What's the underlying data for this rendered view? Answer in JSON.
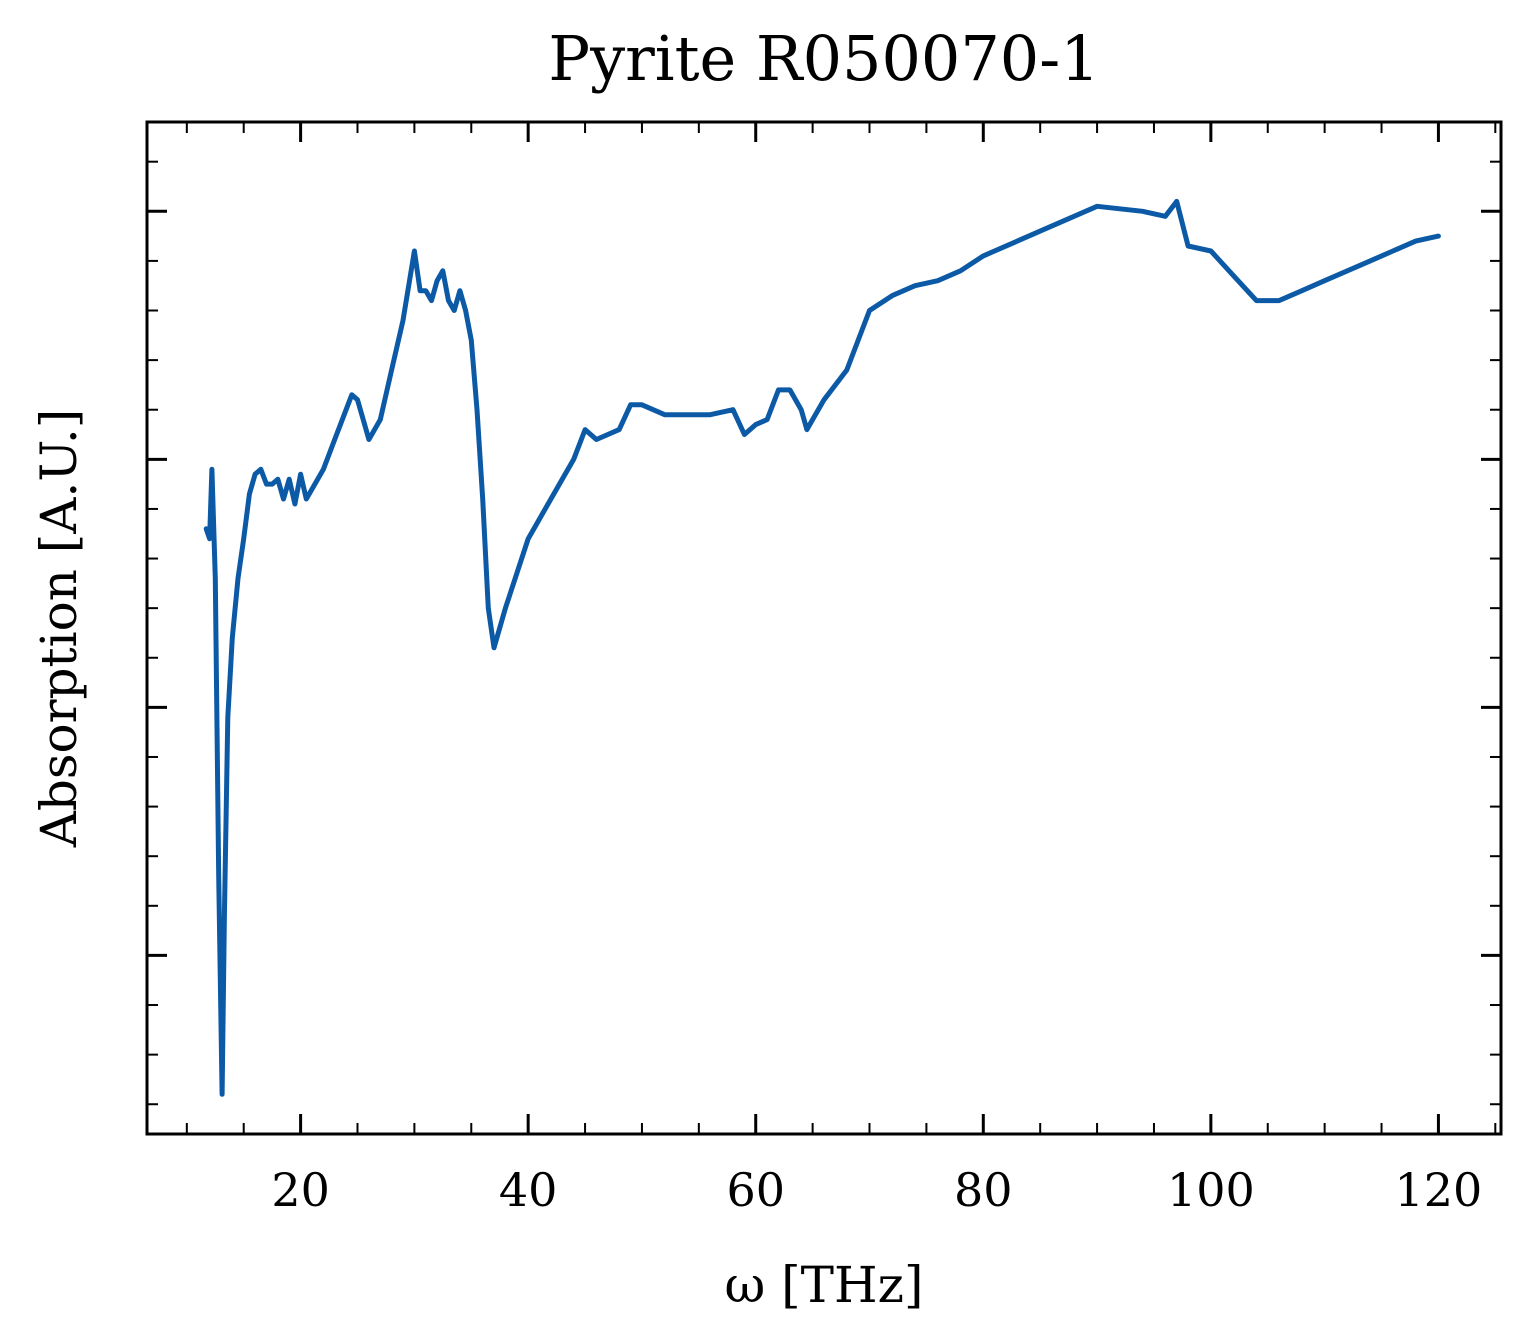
{
  "chart_data": {
    "type": "line",
    "title": "Pyrite R050070-1",
    "xlabel": "ω [THz]",
    "ylabel": "Absorption [A.U.]",
    "xlim": [
      6.5,
      125.5
    ],
    "ylim": [
      0.02,
      1.04
    ],
    "xticks": [
      20,
      40,
      60,
      80,
      100,
      120
    ],
    "xtick_labels": [
      "20",
      "40",
      "60",
      "80",
      "100",
      "120"
    ],
    "yticks": [
      0.2,
      0.45,
      0.7,
      0.95
    ],
    "ytick_labels": [
      "",
      "",
      "",
      ""
    ],
    "grid": false,
    "line_color": "#0c5aa6",
    "series": [
      {
        "name": "",
        "x": [
          11.7,
          12.0,
          12.2,
          12.5,
          12.8,
          13.1,
          13.3,
          13.6,
          14.0,
          14.5,
          15.0,
          15.5,
          16.0,
          16.5,
          17.0,
          17.5,
          18.0,
          18.5,
          19.0,
          19.5,
          20.0,
          20.5,
          21.0,
          22.0,
          23.0,
          24.0,
          24.5,
          25.0,
          25.5,
          26.0,
          27.0,
          28.0,
          29.0,
          30.0,
          30.5,
          31.0,
          31.5,
          32.0,
          32.5,
          33.0,
          33.5,
          34.0,
          34.5,
          35.0,
          35.5,
          36.0,
          36.5,
          37.0,
          38.0,
          40.0,
          42.0,
          44.0,
          45.0,
          46.0,
          48.0,
          49.0,
          50.0,
          52.0,
          54.0,
          56.0,
          58.0,
          59.0,
          60.0,
          61.0,
          62.0,
          63.0,
          64.0,
          64.5,
          65.0,
          66.0,
          68.0,
          70.0,
          72.0,
          74.0,
          76.0,
          78.0,
          80.0,
          85.0,
          90.0,
          94.0,
          96.0,
          97.0,
          98.0,
          100.0,
          102.0,
          104.0,
          106.0,
          108.0,
          110.0,
          112.0,
          114.0,
          116.0,
          118.0,
          120.0
        ],
        "y": [
          0.63,
          0.62,
          0.69,
          0.58,
          0.28,
          0.06,
          0.24,
          0.44,
          0.52,
          0.58,
          0.62,
          0.665,
          0.685,
          0.69,
          0.675,
          0.675,
          0.68,
          0.66,
          0.68,
          0.655,
          0.685,
          0.66,
          0.67,
          0.69,
          0.72,
          0.75,
          0.765,
          0.76,
          0.74,
          0.72,
          0.74,
          0.79,
          0.84,
          0.91,
          0.87,
          0.87,
          0.86,
          0.88,
          0.89,
          0.86,
          0.85,
          0.87,
          0.85,
          0.82,
          0.75,
          0.66,
          0.55,
          0.51,
          0.55,
          0.62,
          0.66,
          0.7,
          0.73,
          0.72,
          0.73,
          0.755,
          0.755,
          0.745,
          0.745,
          0.745,
          0.75,
          0.725,
          0.735,
          0.74,
          0.77,
          0.77,
          0.75,
          0.73,
          0.74,
          0.76,
          0.79,
          0.85,
          0.865,
          0.875,
          0.88,
          0.89,
          0.905,
          0.93,
          0.955,
          0.95,
          0.945,
          0.96,
          0.915,
          0.91,
          0.885,
          0.86,
          0.86,
          0.87,
          0.88,
          0.89,
          0.9,
          0.91,
          0.92,
          0.925
        ]
      }
    ]
  }
}
